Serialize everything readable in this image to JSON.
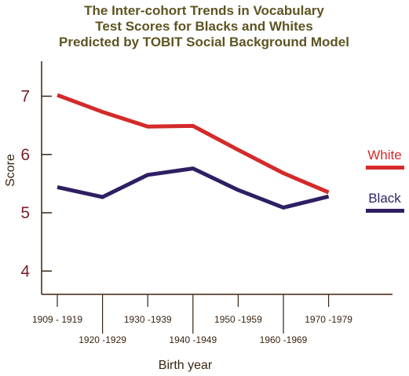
{
  "chart_data": {
    "type": "line",
    "title_lines": [
      "The Inter-cohort Trends in Vocabulary",
      "Test Scores for Blacks and Whites",
      "Predicted by TOBIT Social Background Model"
    ],
    "xlabel": "Birth year",
    "ylabel": "Score",
    "categories": [
      "1909 - 1919",
      "1920 -1929",
      "1930 -1939",
      "1940 -1949",
      "1950 -1959",
      "1960 -1969",
      "1970 -1979"
    ],
    "ylim": [
      3.6,
      7.6
    ],
    "yticks": [
      "4",
      "5",
      "6",
      "7"
    ],
    "series": [
      {
        "name": "White",
        "color": "#d42a2a",
        "values": [
          7.02,
          6.73,
          6.48,
          6.49,
          6.08,
          5.68,
          5.35
        ]
      },
      {
        "name": "Black",
        "color": "#2e1f63",
        "values": [
          5.44,
          5.27,
          5.65,
          5.76,
          5.39,
          5.09,
          5.28
        ]
      }
    ],
    "grid": false,
    "legend_position": "right"
  },
  "colors": {
    "axis": "#3a2412",
    "title": "#5e5422",
    "ytick": "#7a1f2a"
  }
}
